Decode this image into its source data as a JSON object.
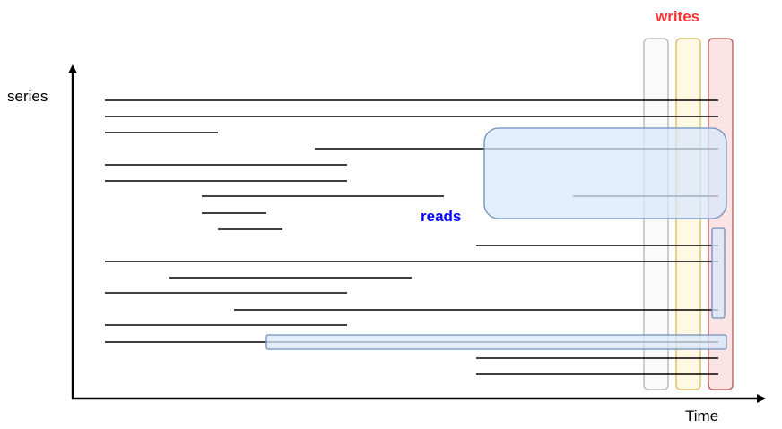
{
  "labels": {
    "y_axis": "series",
    "x_axis": "Time",
    "reads": "reads",
    "writes": "writes"
  },
  "colors": {
    "axis": "#000000",
    "series_line": "#000000",
    "reads_fill": "#dae8fc",
    "reads_stroke": "#6c8ebf",
    "reads_label": "#0000ff",
    "writes_label": "#ff3333",
    "write_block_1_fill": "#f5f5f5",
    "write_block_1_stroke": "#b3b3b3",
    "write_block_2_fill": "#fff2cc",
    "write_block_2_stroke": "#d6b656",
    "write_block_3_fill": "#f8cecc",
    "write_block_3_stroke": "#b85450"
  }
}
